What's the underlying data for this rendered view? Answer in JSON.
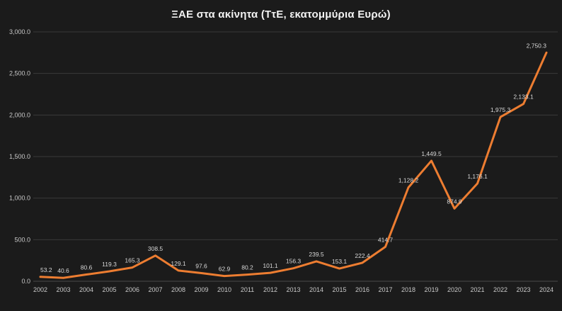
{
  "chart": {
    "title": "ΞΑΕ στα ακίνητα (ΤτΕ, εκατομμύρια Ευρώ)"
  },
  "chart_data": {
    "type": "line",
    "title": "ΞΑΕ στα ακίνητα (ΤτΕ, εκατομμύρια Ευρώ)",
    "categories": [
      "2002",
      "2003",
      "2004",
      "2005",
      "2006",
      "2007",
      "2008",
      "2009",
      "2010",
      "2011",
      "2012",
      "2013",
      "2014",
      "2015",
      "2016",
      "2017",
      "2018",
      "2019",
      "2020",
      "2021",
      "2022",
      "2023",
      "2024"
    ],
    "values": [
      53.2,
      40.6,
      80.6,
      119.3,
      165.3,
      308.5,
      129.1,
      97.6,
      62.9,
      80.2,
      101.1,
      156.3,
      239.5,
      153.1,
      222.4,
      414.7,
      1128.2,
      1449.5,
      874.9,
      1176.1,
      1975.3,
      2133.1,
      2750.3
    ],
    "point_labels": [
      "53.2",
      "40.6",
      "80.6",
      "119.3",
      "165.3",
      "308.5",
      "129.1",
      "97.6",
      "62.9",
      "80.2",
      "101.1",
      "156.3",
      "239.5",
      "153.1",
      "222.4",
      "414.7",
      "1,128.2",
      "1,449.5",
      "874.9",
      "1,176.1",
      "1,975.3",
      "2,133.1",
      "2,750.3"
    ],
    "ylim": [
      0,
      3000
    ],
    "ytick_values": [
      0,
      500,
      1000,
      1500,
      2000,
      2500,
      3000
    ],
    "ytick_labels": [
      "0.0",
      "500.0",
      "1,000.0",
      "1,500.0",
      "2,000.0",
      "2,500.0",
      "3,000.0"
    ],
    "grid": true,
    "legend": "none",
    "xlabel": "",
    "ylabel": "",
    "line_color": "#ED7D31",
    "background_color": "#1b1b1b",
    "text_color": "#c8c8c8"
  }
}
